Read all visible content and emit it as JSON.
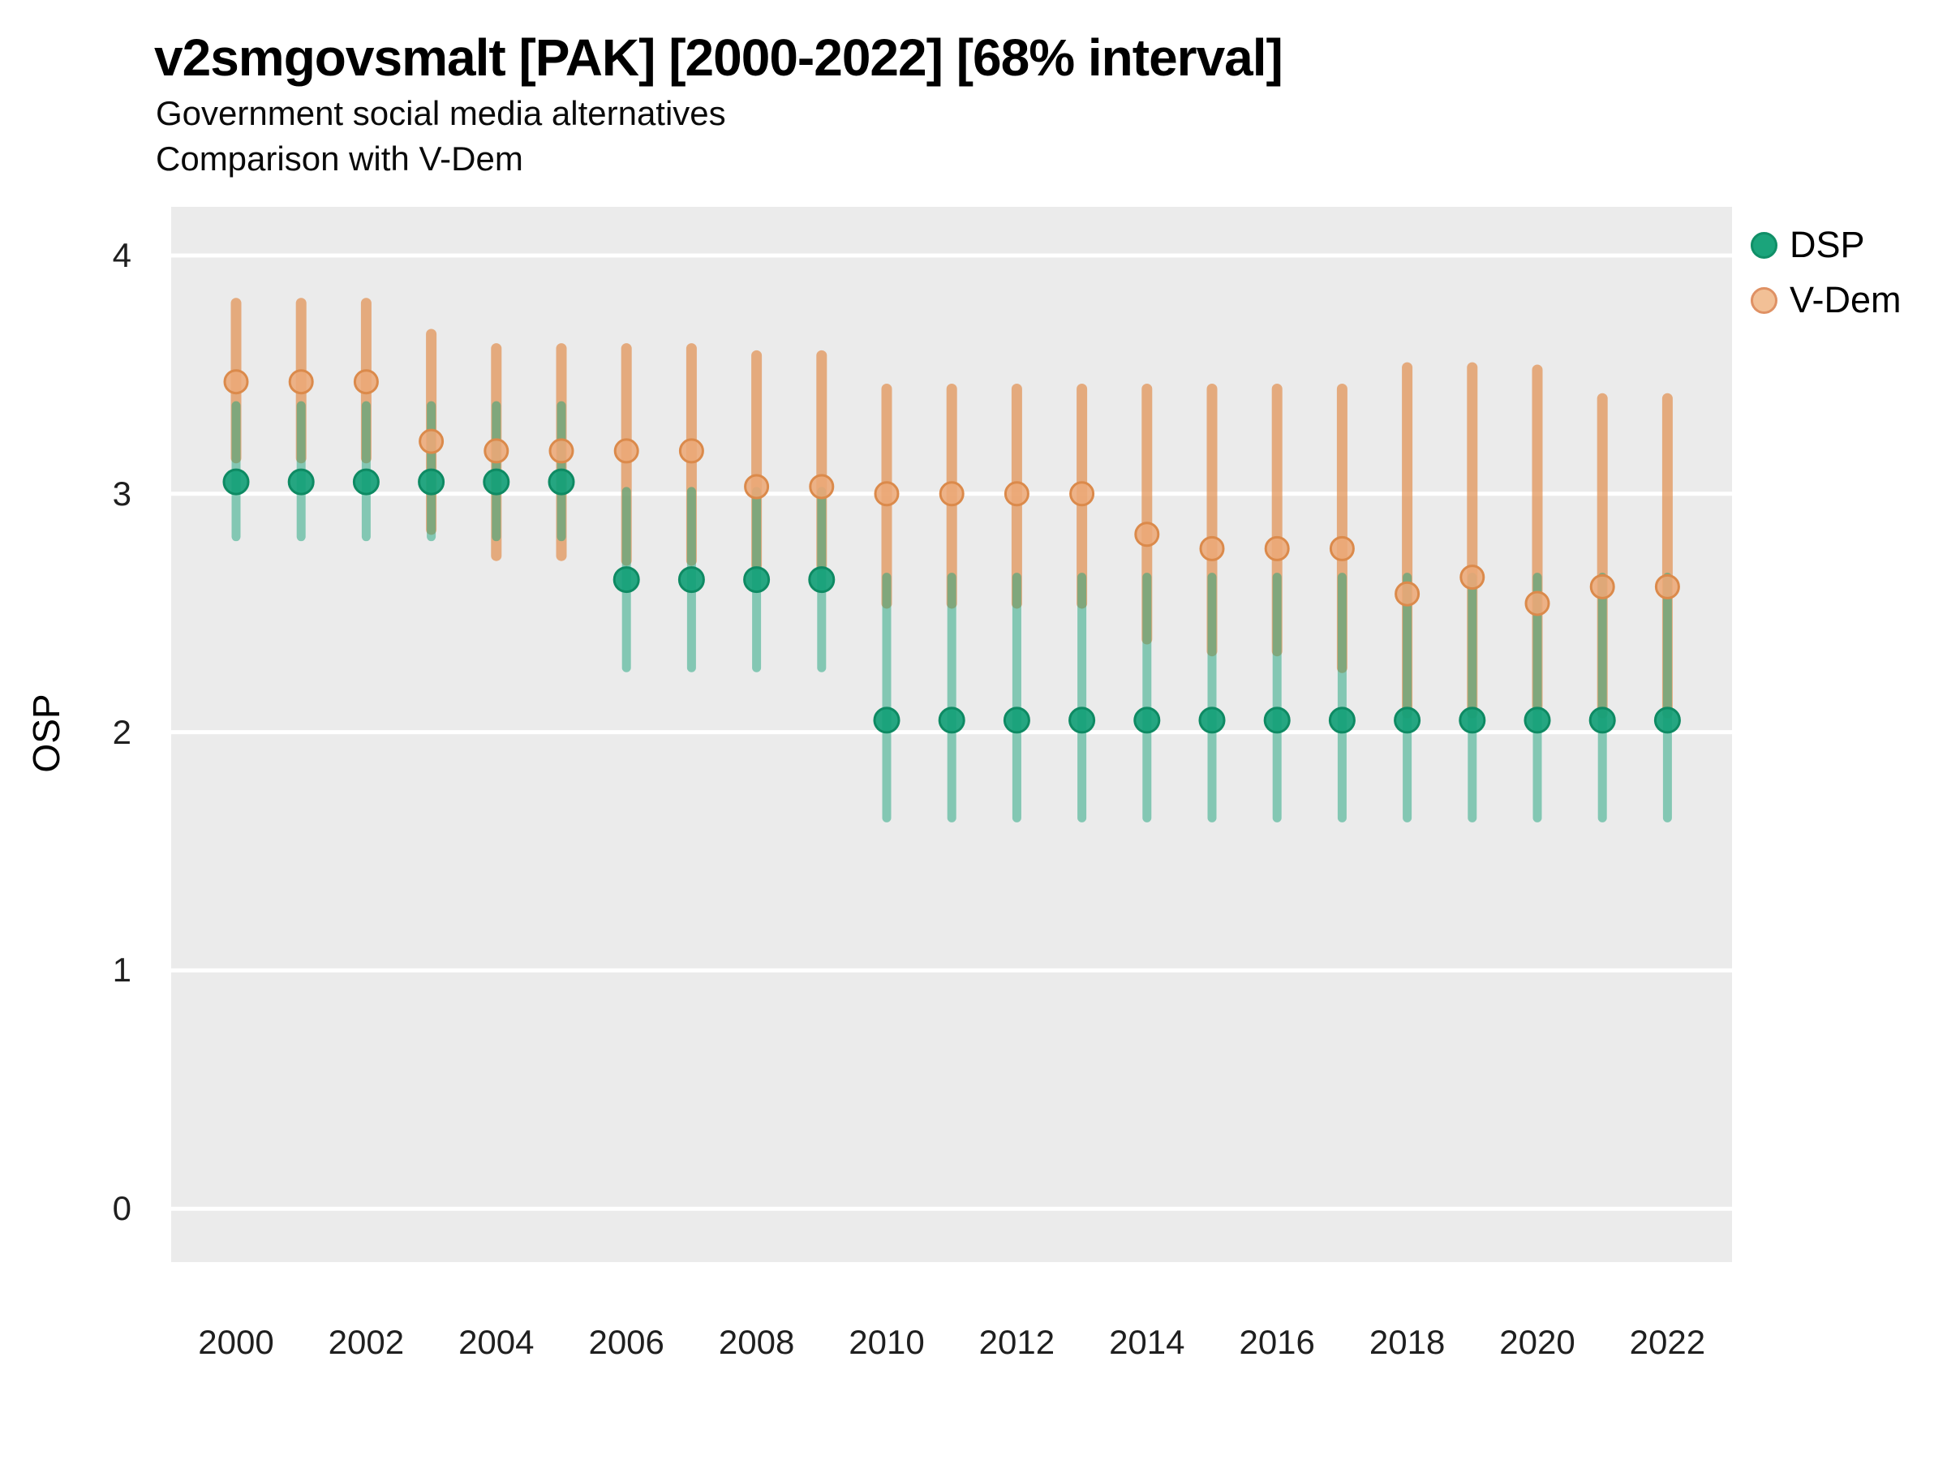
{
  "header": {
    "title": "v2smgovsmalt [PAK] [2000-2022] [68% interval]",
    "subtitle1": "Government social media alternatives",
    "subtitle2": "Comparison with V-Dem"
  },
  "axes": {
    "y_label": "OSP",
    "y_tick_labels": [
      "4",
      "3",
      "2",
      "1",
      "0"
    ],
    "y_tick_values": [
      4,
      3,
      2,
      1,
      0
    ],
    "x_tick_labels": [
      "2000",
      "2002",
      "2004",
      "2006",
      "2008",
      "2010",
      "2012",
      "2014",
      "2016",
      "2018",
      "2020",
      "2022"
    ],
    "x_tick_values": [
      2000,
      2002,
      2004,
      2006,
      2008,
      2010,
      2012,
      2014,
      2016,
      2018,
      2020,
      2022
    ]
  },
  "legend": {
    "items": [
      {
        "label": "DSP",
        "fill": "#1BA47B",
        "stroke": "#108F67"
      },
      {
        "label": "V-Dem",
        "fill": "#F2C096",
        "stroke": "#DF9164"
      }
    ]
  },
  "colors": {
    "panel_background": "#EBEBEB",
    "gridline": "#FFFFFF",
    "dsp_dot_fill": "#14A077",
    "dsp_dot_stroke": "#0E8A63",
    "dsp_bar": "rgba(27,164,123,0.5)",
    "vdem_dot_fill": "#ECA977",
    "vdem_dot_stroke": "#DB8A4B",
    "vdem_bar": "rgba(224,138,72,0.68)"
  },
  "chart_data": {
    "type": "scatter",
    "subtype": "pointrange",
    "title": "v2smgovsmalt [PAK] [2000-2022] [68% interval]",
    "subtitle": "Government social media alternatives — Comparison with V-Dem",
    "xlabel": "",
    "ylabel": "OSP",
    "ylim": [
      -0.2,
      4.2
    ],
    "xlim": [
      1999,
      2023
    ],
    "interval": "68%",
    "grid": "horizontal white major gridlines on gray panel",
    "legend_position": "right-top",
    "x": [
      2000,
      2001,
      2002,
      2003,
      2004,
      2005,
      2006,
      2007,
      2008,
      2009,
      2010,
      2011,
      2012,
      2013,
      2014,
      2015,
      2016,
      2017,
      2018,
      2019,
      2020,
      2021,
      2022
    ],
    "series": [
      {
        "name": "DSP",
        "color": "#1BA47B",
        "est": [
          3.05,
          3.05,
          3.05,
          3.05,
          3.05,
          3.05,
          2.64,
          2.64,
          2.64,
          2.64,
          2.05,
          2.05,
          2.05,
          2.05,
          2.05,
          2.05,
          2.05,
          2.05,
          2.05,
          2.05,
          2.05,
          2.05,
          2.05
        ],
        "lo": [
          2.82,
          2.82,
          2.82,
          2.82,
          2.82,
          2.82,
          2.27,
          2.27,
          2.27,
          2.27,
          1.64,
          1.64,
          1.64,
          1.64,
          1.64,
          1.64,
          1.64,
          1.64,
          1.64,
          1.64,
          1.64,
          1.64,
          1.64
        ],
        "hi": [
          3.37,
          3.37,
          3.37,
          3.37,
          3.37,
          3.37,
          3.01,
          3.01,
          3.01,
          3.01,
          2.65,
          2.65,
          2.65,
          2.65,
          2.65,
          2.65,
          2.65,
          2.65,
          2.65,
          2.65,
          2.65,
          2.65,
          2.65
        ]
      },
      {
        "name": "V-Dem",
        "color": "#E08848",
        "est": [
          3.47,
          3.47,
          3.47,
          3.22,
          3.18,
          3.18,
          3.18,
          3.18,
          3.03,
          3.03,
          3.0,
          3.0,
          3.0,
          3.0,
          2.83,
          2.77,
          2.77,
          2.77,
          2.58,
          2.65,
          2.54,
          2.61,
          2.61
        ],
        "lo": [
          3.15,
          3.15,
          3.15,
          2.85,
          2.74,
          2.74,
          2.72,
          2.72,
          2.7,
          2.7,
          2.54,
          2.54,
          2.54,
          2.54,
          2.39,
          2.34,
          2.34,
          2.27,
          2.08,
          2.08,
          2.11,
          2.08,
          2.08
        ],
        "hi": [
          3.8,
          3.8,
          3.8,
          3.67,
          3.61,
          3.61,
          3.61,
          3.61,
          3.58,
          3.58,
          3.44,
          3.44,
          3.44,
          3.44,
          3.44,
          3.44,
          3.44,
          3.44,
          3.53,
          3.53,
          3.52,
          3.4,
          3.4
        ]
      }
    ]
  }
}
